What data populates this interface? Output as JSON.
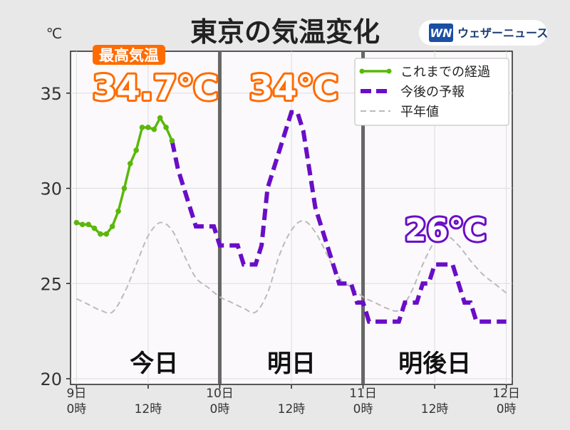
{
  "header": {
    "title": "東京の気温変化",
    "brand": "ウェザーニュース",
    "brand_logo": "WN"
  },
  "annotations": {
    "max_badge": "最高気温",
    "today_max": "34.7℃",
    "tomorrow_max": "34℃",
    "day_after_max": "26℃"
  },
  "colors": {
    "observed": "#5ab80a",
    "forecast": "#6a0dc7",
    "normal": "#bbbbbb",
    "highlight": "#ff6b00",
    "divider": "#666666",
    "plot_bg": "#fbf9fb"
  },
  "chart_data": {
    "type": "line",
    "x_unit": "hours from 9日 0時",
    "xlim": [
      -1,
      73
    ],
    "ylim": [
      19.7,
      37.2
    ],
    "yticks": [
      20,
      25,
      30,
      35
    ],
    "ylabel": "℃",
    "xticks": [
      {
        "x": 0,
        "label": [
          "9日",
          "0時"
        ]
      },
      {
        "x": 12,
        "label": [
          "12時"
        ]
      },
      {
        "x": 24,
        "label": [
          "10日",
          "0時"
        ]
      },
      {
        "x": 36,
        "label": [
          "12時"
        ]
      },
      {
        "x": 48,
        "label": [
          "11日",
          "0時"
        ]
      },
      {
        "x": 60,
        "label": [
          "12時"
        ]
      },
      {
        "x": 72,
        "label": [
          "12日",
          "0時"
        ]
      }
    ],
    "day_labels": [
      {
        "x": 13,
        "label": "今日"
      },
      {
        "x": 36,
        "label": "明日"
      },
      {
        "x": 60,
        "label": "明後日"
      }
    ],
    "dividers": [
      24,
      48
    ],
    "legend": {
      "position": "top-right",
      "entries": [
        {
          "key": "observed",
          "label": "これまでの経過"
        },
        {
          "key": "forecast",
          "label": "今後の予報"
        },
        {
          "key": "normal",
          "label": "平年値"
        }
      ]
    },
    "series": [
      {
        "key": "observed",
        "name": "これまでの経過",
        "x": [
          0,
          1,
          2,
          3,
          4,
          5,
          6,
          7,
          8,
          9,
          10,
          11,
          12,
          13,
          14,
          15,
          16
        ],
        "y": [
          28.2,
          28.1,
          28.1,
          27.9,
          27.6,
          27.6,
          28.0,
          28.8,
          30.0,
          31.3,
          32.0,
          33.2,
          33.2,
          33.1,
          33.7,
          33.2,
          32.5
        ]
      },
      {
        "key": "forecast",
        "name": "今後の予報",
        "x": [
          16,
          17,
          18,
          19,
          20,
          21,
          22,
          23,
          24,
          25,
          26,
          27,
          28,
          29,
          30,
          31,
          32,
          33,
          34,
          35,
          36,
          37,
          38,
          39,
          40,
          41,
          42,
          43,
          44,
          45,
          46,
          47,
          48,
          49,
          50,
          51,
          52,
          53,
          54,
          55,
          56,
          57,
          58,
          59,
          60,
          61,
          62,
          63,
          64,
          65,
          66,
          67,
          68,
          69,
          70,
          71,
          72
        ],
        "y": [
          32.5,
          31.0,
          30.0,
          29.0,
          28.0,
          28.0,
          28.0,
          28.0,
          27.0,
          27.0,
          27.0,
          27.0,
          26.0,
          26.0,
          26.0,
          27.0,
          30.0,
          31.0,
          32.0,
          33.0,
          34.0,
          34.0,
          33.0,
          31.0,
          29.0,
          28.0,
          27.0,
          26.0,
          25.0,
          25.0,
          25.0,
          24.0,
          24.0,
          23.0,
          23.0,
          23.0,
          23.0,
          23.0,
          23.0,
          24.0,
          24.0,
          24.0,
          25.0,
          25.0,
          26.0,
          26.0,
          26.0,
          26.0,
          25.0,
          24.0,
          24.0,
          23.0,
          23.0,
          23.0,
          23.0,
          23.0,
          23.0
        ]
      },
      {
        "key": "normal",
        "name": "平年値",
        "x": [
          0,
          2,
          4,
          6,
          8,
          10,
          12,
          14,
          16,
          18,
          20,
          22,
          24,
          26,
          28,
          30,
          32,
          34,
          36,
          38,
          40,
          42,
          44,
          46,
          48,
          50,
          52,
          54,
          56,
          58,
          60,
          62,
          64,
          66,
          68,
          70,
          72
        ],
        "y": [
          24.2,
          23.9,
          23.6,
          23.5,
          24.5,
          26.0,
          27.5,
          28.2,
          27.8,
          26.5,
          25.3,
          24.8,
          24.3,
          24.0,
          23.7,
          23.5,
          24.5,
          26.5,
          27.8,
          28.3,
          27.7,
          26.5,
          25.3,
          24.8,
          24.3,
          24.0,
          23.7,
          23.6,
          24.5,
          26.0,
          27.2,
          27.5,
          27.0,
          26.2,
          25.5,
          25.0,
          24.5
        ]
      }
    ]
  }
}
